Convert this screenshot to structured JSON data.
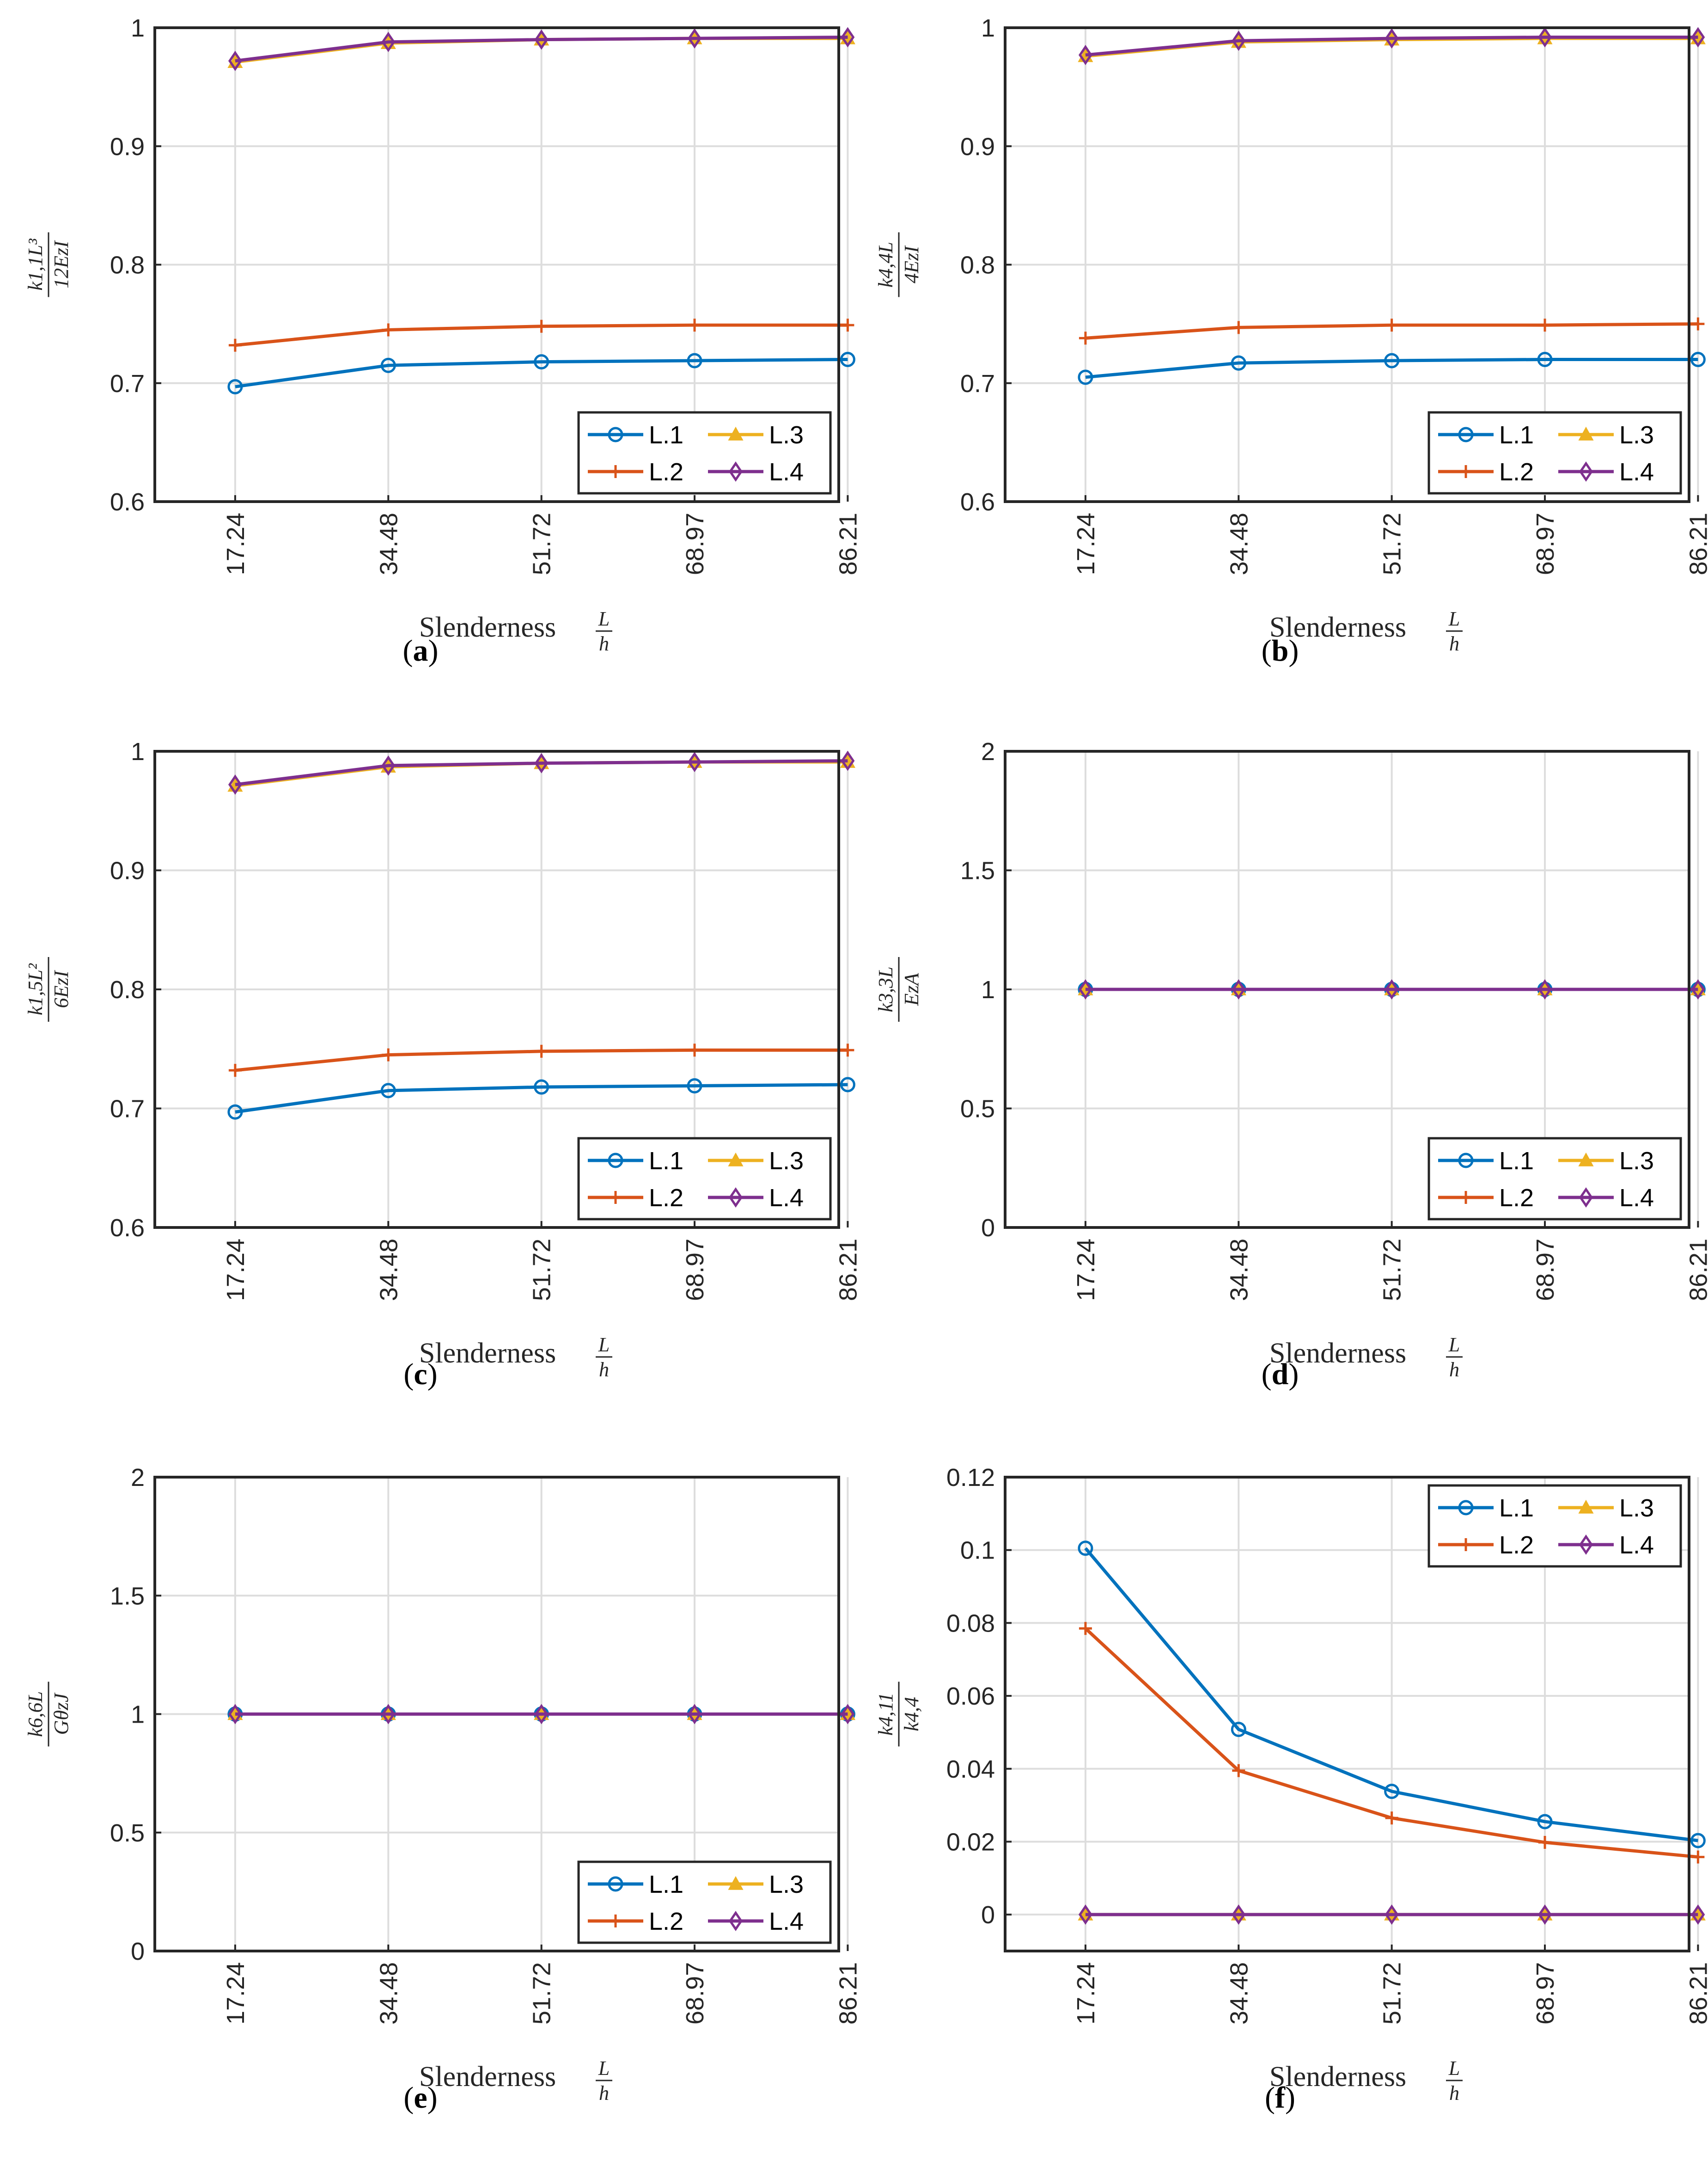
{
  "chart_data": [
    {
      "id": "a",
      "type": "line",
      "caption": "a",
      "ylabel_num": "k1,1L³",
      "ylabel_den": "12EzI",
      "xlabel": "Slenderness",
      "xlabel_num": "L",
      "xlabel_den": "h",
      "categories": [
        "17.24",
        "34.48",
        "51.72",
        "68.97",
        "86.21"
      ],
      "ylim": [
        0.6,
        1.0
      ],
      "yticks": [
        "0.6",
        "0.7",
        "0.8",
        "0.9",
        "1"
      ],
      "yticks_values": [
        0.6,
        0.7,
        0.8,
        0.9,
        1.0
      ],
      "legend_position": "bottom-right",
      "series": [
        {
          "name": "L.1",
          "values": [
            0.697,
            0.715,
            0.718,
            0.719,
            0.72
          ]
        },
        {
          "name": "L.2",
          "values": [
            0.732,
            0.745,
            0.748,
            0.749,
            0.749
          ]
        },
        {
          "name": "L.3",
          "values": [
            0.971,
            0.987,
            0.99,
            0.991,
            0.991
          ]
        },
        {
          "name": "L.4",
          "values": [
            0.972,
            0.988,
            0.99,
            0.991,
            0.992
          ]
        }
      ]
    },
    {
      "id": "b",
      "type": "line",
      "caption": "b",
      "ylabel_num": "k4,4L",
      "ylabel_den": "4EzI",
      "xlabel": "Slenderness",
      "xlabel_num": "L",
      "xlabel_den": "h",
      "categories": [
        "17.24",
        "34.48",
        "51.72",
        "68.97",
        "86.21"
      ],
      "ylim": [
        0.6,
        1.0
      ],
      "yticks": [
        "0.6",
        "0.7",
        "0.8",
        "0.9",
        "1"
      ],
      "yticks_values": [
        0.6,
        0.7,
        0.8,
        0.9,
        1.0
      ],
      "legend_position": "bottom-right",
      "series": [
        {
          "name": "L.1",
          "values": [
            0.705,
            0.717,
            0.719,
            0.72,
            0.72
          ]
        },
        {
          "name": "L.2",
          "values": [
            0.738,
            0.747,
            0.749,
            0.749,
            0.75
          ]
        },
        {
          "name": "L.3",
          "values": [
            0.976,
            0.988,
            0.99,
            0.991,
            0.991
          ]
        },
        {
          "name": "L.4",
          "values": [
            0.977,
            0.989,
            0.991,
            0.992,
            0.992
          ]
        }
      ]
    },
    {
      "id": "c",
      "type": "line",
      "caption": "c",
      "ylabel_num": "k1,5L²",
      "ylabel_den": "6EzI",
      "xlabel": "Slenderness",
      "xlabel_num": "L",
      "xlabel_den": "h",
      "categories": [
        "17.24",
        "34.48",
        "51.72",
        "68.97",
        "86.21"
      ],
      "ylim": [
        0.6,
        1.0
      ],
      "yticks": [
        "0.6",
        "0.7",
        "0.8",
        "0.9",
        "1"
      ],
      "yticks_values": [
        0.6,
        0.7,
        0.8,
        0.9,
        1.0
      ],
      "legend_position": "bottom-right",
      "series": [
        {
          "name": "L.1",
          "values": [
            0.697,
            0.715,
            0.718,
            0.719,
            0.72
          ]
        },
        {
          "name": "L.2",
          "values": [
            0.732,
            0.745,
            0.748,
            0.749,
            0.749
          ]
        },
        {
          "name": "L.3",
          "values": [
            0.971,
            0.987,
            0.99,
            0.991,
            0.991
          ]
        },
        {
          "name": "L.4",
          "values": [
            0.972,
            0.988,
            0.99,
            0.991,
            0.992
          ]
        }
      ]
    },
    {
      "id": "d",
      "type": "line",
      "caption": "d",
      "ylabel_num": "k3,3L",
      "ylabel_den": "EzA",
      "xlabel": "Slenderness",
      "xlabel_num": "L",
      "xlabel_den": "h",
      "categories": [
        "17.24",
        "34.48",
        "51.72",
        "68.97",
        "86.21"
      ],
      "ylim": [
        0,
        2
      ],
      "yticks": [
        "0",
        "0.5",
        "1",
        "1.5",
        "2"
      ],
      "yticks_values": [
        0,
        0.5,
        1.0,
        1.5,
        2.0
      ],
      "legend_position": "bottom-right",
      "series": [
        {
          "name": "L.1",
          "values": [
            1,
            1,
            1,
            1,
            1
          ]
        },
        {
          "name": "L.2",
          "values": [
            1,
            1,
            1,
            1,
            1
          ]
        },
        {
          "name": "L.3",
          "values": [
            1,
            1,
            1,
            1,
            1
          ]
        },
        {
          "name": "L.4",
          "values": [
            1,
            1,
            1,
            1,
            1
          ]
        }
      ]
    },
    {
      "id": "e",
      "type": "line",
      "caption": "e",
      "ylabel_num": "k6,6L",
      "ylabel_den": "GθzJ",
      "xlabel": "Slenderness",
      "xlabel_num": "L",
      "xlabel_den": "h",
      "categories": [
        "17.24",
        "34.48",
        "51.72",
        "68.97",
        "86.21"
      ],
      "ylim": [
        0,
        2
      ],
      "yticks": [
        "0",
        "0.5",
        "1",
        "1.5",
        "2"
      ],
      "yticks_values": [
        0,
        0.5,
        1.0,
        1.5,
        2.0
      ],
      "legend_position": "bottom-right",
      "series": [
        {
          "name": "L.1",
          "values": [
            1,
            1,
            1,
            1,
            1
          ]
        },
        {
          "name": "L.2",
          "values": [
            1,
            1,
            1,
            1,
            1
          ]
        },
        {
          "name": "L.3",
          "values": [
            1,
            1,
            1,
            1,
            1
          ]
        },
        {
          "name": "L.4",
          "values": [
            1,
            1,
            1,
            1,
            1
          ]
        }
      ]
    },
    {
      "id": "f",
      "type": "line",
      "caption": "f",
      "ylabel_num": "k4,11",
      "ylabel_den": "k4,4",
      "xlabel": "Slenderness",
      "xlabel_num": "L",
      "xlabel_den": "h",
      "categories": [
        "17.24",
        "34.48",
        "51.72",
        "68.97",
        "86.21"
      ],
      "ylim": [
        -0.01,
        0.12
      ],
      "yticks": [
        "0",
        "0.02",
        "0.04",
        "0.06",
        "0.08",
        "0.1",
        "0.12"
      ],
      "yticks_values": [
        0,
        0.02,
        0.04,
        0.06,
        0.08,
        0.1,
        0.12
      ],
      "legend_position": "top-right",
      "series": [
        {
          "name": "L.1",
          "values": [
            0.1005,
            0.0508,
            0.0338,
            0.0255,
            0.0203
          ]
        },
        {
          "name": "L.2",
          "values": [
            0.0785,
            0.0395,
            0.0265,
            0.0198,
            0.0158
          ]
        },
        {
          "name": "L.3",
          "values": [
            0,
            0,
            0,
            0,
            0
          ]
        },
        {
          "name": "L.4",
          "values": [
            0,
            0,
            0,
            0,
            0
          ]
        }
      ]
    }
  ],
  "colors": {
    "L.1": "#0072BD",
    "L.2": "#D95319",
    "L.3": "#EDB120",
    "L.4": "#7E2F8E",
    "grid": "#dddddd",
    "axis": "#262626"
  },
  "markers": {
    "L.1": "circle",
    "L.2": "plus",
    "L.3": "triangle",
    "L.4": "diamond"
  }
}
